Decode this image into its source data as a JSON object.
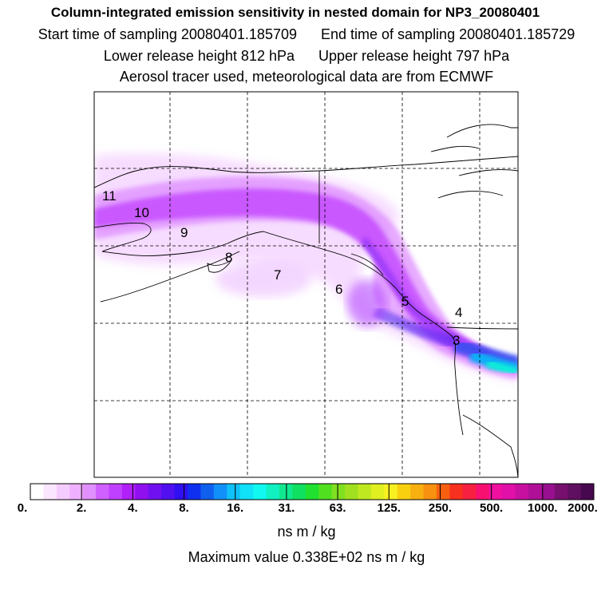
{
  "header": {
    "title": "Column-integrated emission sensitivity in nested domain for NP3_20080401",
    "start_time": "Start time of sampling 20080401.185709",
    "end_time": "End time of sampling 20080401.185729",
    "lower_release": "Lower release height  812 hPa",
    "upper_release": "Upper release height  797 hPa",
    "tracer_info": "Aerosol tracer used, meteorological data are from ECMWF"
  },
  "map": {
    "release_labels": [
      "11",
      "10",
      "9",
      "8",
      "7",
      "6",
      "5",
      "4",
      "3"
    ]
  },
  "colorbar": {
    "tick_labels": [
      "0.",
      "2.",
      "4.",
      "8.",
      "16.",
      "31.",
      "63.",
      "125.",
      "250.",
      "500.",
      "1000.",
      "2000."
    ],
    "colors": [
      "#ffffff",
      "#fbe6ff",
      "#f5ccff",
      "#efb0ff",
      "#e090ff",
      "#d060ff",
      "#c040ff",
      "#b020f8",
      "#9010f0",
      "#7010f0",
      "#5010f0",
      "#3010f0",
      "#1030f0",
      "#1060f0",
      "#1090f8",
      "#10c0f8",
      "#10e0f8",
      "#10f8f0",
      "#10f0c0",
      "#10e890",
      "#10e060",
      "#20e030",
      "#50e020",
      "#80e020",
      "#a0e020",
      "#c0e820",
      "#e0f020",
      "#f8f020",
      "#f8d010",
      "#f8b010",
      "#f89010",
      "#f86010",
      "#f83020",
      "#f82040",
      "#f81070",
      "#f010a0",
      "#e010a8",
      "#c810a0",
      "#b01098",
      "#981090",
      "#781070",
      "#601060",
      "#480850"
    ],
    "units": "ns m / kg"
  },
  "footer": {
    "max_value": "Maximum value  0.338E+02 ns m / kg"
  }
}
